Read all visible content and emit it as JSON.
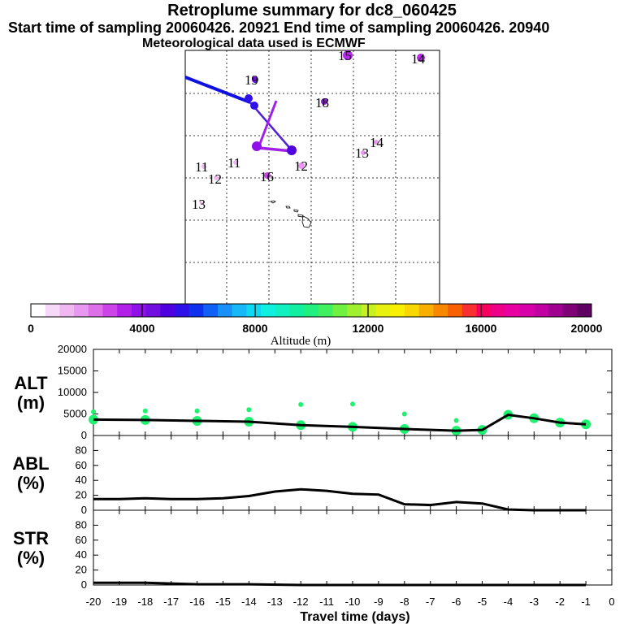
{
  "header": {
    "title": "Retroplume summary for dc8_060425",
    "sampling_line": "Start time of sampling 20060426. 20921     End time of sampling 20060426. 20940",
    "met_line": "Meteorological data used is ECMWF"
  },
  "map": {
    "labels": [
      "15",
      "14",
      "19",
      "18",
      "14",
      "13",
      "12",
      "11",
      "11",
      "12",
      "16",
      "13"
    ]
  },
  "colorbar": {
    "title": "Altitude (m)",
    "tick_labels": [
      "0",
      "4000",
      "8000",
      "12000",
      "16000",
      "20000"
    ],
    "colors": [
      "#ffffff",
      "#f8d8f8",
      "#f0b8f0",
      "#e898f0",
      "#dd70e8",
      "#cc44e8",
      "#b020e8",
      "#9010e8",
      "#7010e0",
      "#5000e0",
      "#3010e8",
      "#1030f0",
      "#1060f8",
      "#1890f8",
      "#18b8f8",
      "#10d8f0",
      "#10f0e0",
      "#10f0c0",
      "#10f0a0",
      "#20f080",
      "#40f060",
      "#70f040",
      "#a0f030",
      "#c8f020",
      "#e8f010",
      "#f8f000",
      "#f8d800",
      "#f8b000",
      "#f88800",
      "#f86000",
      "#f83030",
      "#f80060",
      "#f00088",
      "#e800a0",
      "#d800a8",
      "#c000a0",
      "#a00090",
      "#800078",
      "#600060"
    ]
  },
  "chart_data": [
    {
      "type": "line",
      "panel": "ALT (m)",
      "ylabel_top": "ALT",
      "ylabel_bottom": "(m)",
      "ylim": [
        0,
        20000
      ],
      "y_ticks": [
        "0",
        "5000",
        "10000",
        "15000",
        "20000"
      ],
      "x": [
        -20,
        -18,
        -16,
        -14,
        -12,
        -10,
        -8,
        -6,
        -5,
        -4,
        -3,
        -2,
        -1
      ],
      "series": [
        {
          "name": "mean altitude",
          "values": [
            3700,
            3600,
            3400,
            3200,
            2400,
            2000,
            1500,
            1100,
            1300,
            4800,
            4000,
            3000,
            2600
          ]
        },
        {
          "name": "upper cluster",
          "values": [
            5500,
            5700,
            5700,
            6000,
            7200,
            7300,
            5000,
            3500,
            null,
            4600,
            4200,
            3000,
            2600
          ]
        }
      ]
    },
    {
      "type": "line",
      "panel": "ABL (%)",
      "ylabel_top": "ABL",
      "ylabel_bottom": "(%)",
      "ylim": [
        0,
        100
      ],
      "y_ticks": [
        "0",
        "20",
        "40",
        "60",
        "80"
      ],
      "x": [
        -20,
        -19,
        -18,
        -17,
        -16,
        -15,
        -14,
        -13,
        -12,
        -11,
        -10,
        -9,
        -8,
        -7,
        -6,
        -5,
        -4,
        -3,
        -2,
        -1
      ],
      "values": [
        15,
        15,
        16,
        15,
        15,
        16,
        19,
        25,
        28,
        26,
        22,
        21,
        8,
        7,
        11,
        9,
        1,
        0,
        0,
        0
      ]
    },
    {
      "type": "line",
      "panel": "STR (%)",
      "ylabel_top": "STR",
      "ylabel_bottom": "(%)",
      "ylim": [
        0,
        100
      ],
      "y_ticks": [
        "0",
        "20",
        "40",
        "60",
        "80"
      ],
      "x": [
        -20,
        -18,
        -16,
        -14,
        -12,
        -10,
        -8,
        -6,
        -4,
        -2,
        -1
      ],
      "values": [
        3,
        3,
        1,
        1,
        0,
        0,
        0,
        0,
        0,
        0,
        0
      ],
      "x_tick_labels": [
        "-20",
        "-19",
        "-18",
        "-17",
        "-16",
        "-15",
        "-14",
        "-13",
        "-12",
        "-11",
        "-10",
        "-9",
        "-8",
        "-7",
        "-6",
        "-5",
        "-4",
        "-3",
        "-2",
        "-1",
        "0"
      ],
      "xlabel": "Travel time (days)"
    }
  ]
}
